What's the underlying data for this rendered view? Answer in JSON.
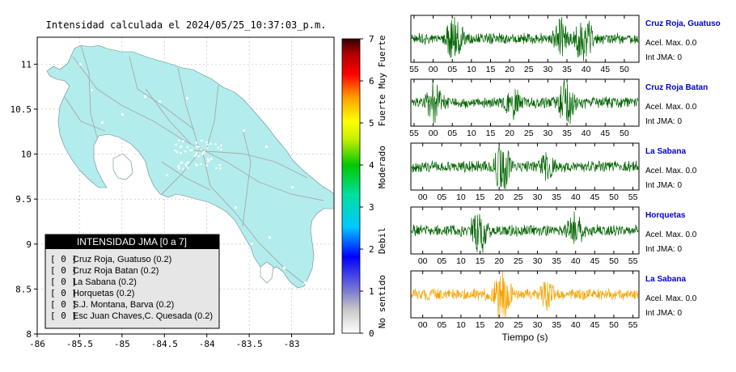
{
  "map": {
    "title": "Intensidad calculada el 2024/05/25_10:37:03_p.m.",
    "xticks": [
      "-86",
      "-85.5",
      "-85",
      "-84.5",
      "-84",
      "-83.5",
      "-83"
    ],
    "yticks": [
      "11",
      "10.5",
      "10",
      "9.5",
      "9",
      "8.5",
      "8"
    ],
    "xlim": [
      -86,
      -82.5
    ],
    "ylim": [
      8,
      11.3
    ],
    "land_color": "#b3ecec",
    "road_color": "#a8a8a8"
  },
  "legend": {
    "title": "INTENSIDAD JMA [0 a 7]",
    "items": [
      {
        "value": "[ 0 ]",
        "label": "Cruz Roja, Guatuso (0.2)"
      },
      {
        "value": "[ 0 ]",
        "label": "Cruz Roja Batan (0.2)"
      },
      {
        "value": "[ 0 ]",
        "label": "La Sabana (0.2)"
      },
      {
        "value": "[ 0 ]",
        "label": "Horquetas (0.2)"
      },
      {
        "value": "[ 0 ]",
        "label": "S.J. Montana, Barva (0.2)"
      },
      {
        "value": "[ 0 ]",
        "label": "Esc Juan Chaves,C. Quesada (0.2)"
      }
    ]
  },
  "colorbar": {
    "ticks": [
      "0",
      "1",
      "2",
      "3",
      "4",
      "5",
      "6",
      "7"
    ],
    "labels": [
      "No sentido",
      "Debil",
      "Moderado",
      "Fuerte",
      "Muy Fuerte"
    ],
    "range": [
      0,
      7
    ]
  },
  "chart_data": [
    {
      "type": "line",
      "title": "Cruz Roja, Guatuso",
      "acel_label": "Acel. Max. 0.0",
      "jma_label": "Int JMA: 0",
      "color": "#006400",
      "tick_labels": [
        "55",
        "00",
        "05",
        "10",
        "15",
        "20",
        "25",
        "30",
        "35",
        "40",
        "45",
        "50"
      ],
      "bursts": [
        {
          "at": 0.19,
          "amp": 0.8
        },
        {
          "at": 0.76,
          "amp": 1.0
        },
        {
          "at": 0.66,
          "amp": 0.7
        }
      ]
    },
    {
      "type": "line",
      "title": "Cruz Roja Batan",
      "acel_label": "Acel. Max. 0.0",
      "jma_label": "Int JMA: 0",
      "color": "#006400",
      "tick_labels": [
        "55",
        "00",
        "05",
        "10",
        "15",
        "20",
        "25",
        "30",
        "35",
        "40",
        "45",
        "50"
      ],
      "bursts": [
        {
          "at": 0.1,
          "amp": 0.8
        },
        {
          "at": 0.68,
          "amp": 1.0
        },
        {
          "at": 0.45,
          "amp": 0.5
        }
      ]
    },
    {
      "type": "line",
      "title": "La Sabana",
      "acel_label": "Acel. Max. 0.0",
      "jma_label": "Int JMA: 0",
      "color": "#006400",
      "tick_labels": [
        "00",
        "05",
        "10",
        "15",
        "20",
        "25",
        "30",
        "35",
        "40",
        "45",
        "50",
        "55"
      ],
      "bursts": [
        {
          "at": 0.4,
          "amp": 1.0
        },
        {
          "at": 0.6,
          "amp": 0.4
        }
      ]
    },
    {
      "type": "line",
      "title": "Horquetas",
      "acel_label": "Acel. Max. 0.0",
      "jma_label": "Int JMA: 0",
      "color": "#006400",
      "tick_labels": [
        "00",
        "05",
        "10",
        "15",
        "20",
        "25",
        "30",
        "35",
        "40",
        "45",
        "50",
        "55"
      ],
      "bursts": [
        {
          "at": 0.3,
          "amp": 0.9
        },
        {
          "at": 0.72,
          "amp": 0.6
        }
      ]
    },
    {
      "type": "line",
      "title": "La Sabana",
      "acel_label": "Acel. Max. 0.0",
      "jma_label": "Int JMA: 0",
      "color": "#f5a400",
      "tick_labels": [
        "00",
        "05",
        "10",
        "15",
        "20",
        "25",
        "30",
        "35",
        "40",
        "45",
        "50",
        "55"
      ],
      "xlabel": "Tiempo (s)",
      "bursts": [
        {
          "at": 0.4,
          "amp": 1.0
        },
        {
          "at": 0.6,
          "amp": 0.4
        }
      ]
    }
  ]
}
